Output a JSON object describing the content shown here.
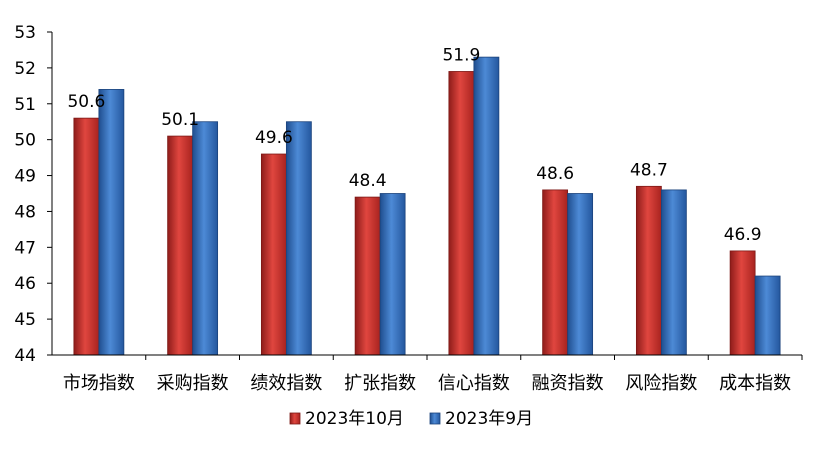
{
  "chart_data": {
    "type": "bar",
    "title": "",
    "xlabel": "",
    "ylabel": "",
    "categories": [
      "市场指数",
      "采购指数",
      "绩效指数",
      "扩张指数",
      "信心指数",
      "融资指数",
      "风险指数",
      "成本指数"
    ],
    "ylim": [
      44,
      53
    ],
    "yticks": [
      44,
      45,
      46,
      47,
      48,
      49,
      50,
      51,
      52,
      53
    ],
    "grid": false,
    "legend_position": "bottom",
    "series": [
      {
        "name": "2023年10月",
        "values": [
          50.6,
          50.1,
          49.6,
          48.4,
          51.9,
          48.6,
          48.7,
          46.9
        ],
        "data_labels": [
          "50.6",
          "50.1",
          "49.6",
          "48.4",
          "51.9",
          "48.6",
          "48.7",
          "46.9"
        ],
        "color": "#c0302c"
      },
      {
        "name": "2023年9月",
        "values": [
          51.4,
          50.5,
          50.5,
          48.5,
          52.3,
          48.5,
          48.6,
          46.2
        ],
        "color": "#3069b8"
      }
    ]
  }
}
